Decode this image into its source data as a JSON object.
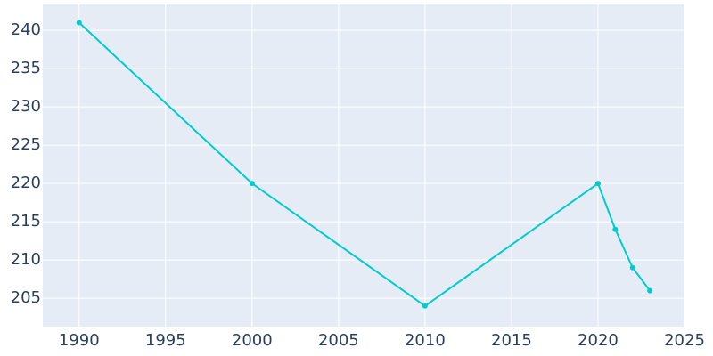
{
  "chart_data": {
    "type": "line",
    "x": [
      1990,
      2000,
      2010,
      2020,
      2021,
      2022,
      2023
    ],
    "series": [
      {
        "color": "#00cccc",
        "values": [
          241,
          220,
          204,
          220,
          214,
          209,
          206
        ]
      }
    ],
    "xlim": [
      1987.9,
      2025
    ],
    "xticks": [
      1990,
      1995,
      2000,
      2005,
      2010,
      2015,
      2020,
      2025
    ],
    "ylim": [
      201.3,
      243.5
    ],
    "yticks": [
      205,
      210,
      215,
      220,
      225,
      230,
      235,
      240
    ],
    "grid": true
  }
}
